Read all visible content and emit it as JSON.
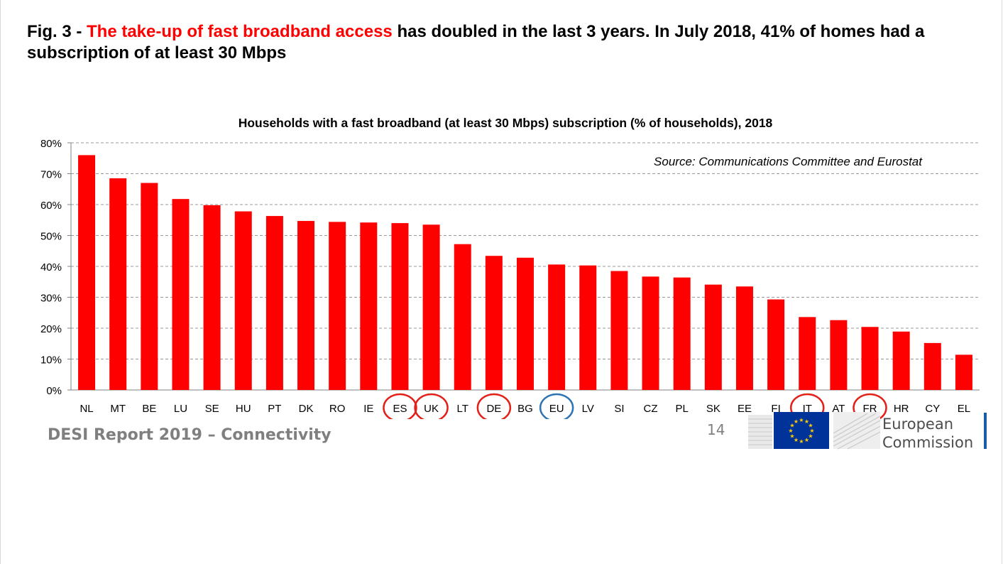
{
  "headline": {
    "prefix": "Fig. 3 - ",
    "highlight": "The take-up of fast broadband access",
    "rest": " has doubled in the last 3 years. In July 2018, 41% of homes had a subscription of at least 30 Mbps"
  },
  "footer": {
    "report": "DESI Report 2019 – Connectivity",
    "page_number": "14",
    "org_line1": "European",
    "org_line2": "Commission"
  },
  "colors": {
    "bar": "#ff0000",
    "highlight_text": "#ff0000",
    "circle_highlight": "#e32119",
    "circle_eu": "#2e74b5"
  },
  "chart_data": {
    "type": "bar",
    "title": "Households with a fast broadband (at least 30 Mbps) subscription (% of households), 2018",
    "annotation": "Source: Communications Committee and Eurostat",
    "xlabel": "",
    "ylabel": "",
    "ylim": [
      0,
      80
    ],
    "yticks": [
      "0%",
      "10%",
      "20%",
      "30%",
      "40%",
      "50%",
      "60%",
      "70%",
      "80%"
    ],
    "grid": true,
    "categories": [
      "NL",
      "MT",
      "BE",
      "LU",
      "SE",
      "HU",
      "PT",
      "DK",
      "RO",
      "IE",
      "ES",
      "UK",
      "LT",
      "DE",
      "BG",
      "EU",
      "LV",
      "SI",
      "CZ",
      "PL",
      "SK",
      "EE",
      "FI",
      "IT",
      "AT",
      "FR",
      "HR",
      "CY",
      "EL"
    ],
    "values": [
      76,
      68.5,
      67,
      61.8,
      59.8,
      57.8,
      56.3,
      54.7,
      54.4,
      54.2,
      54,
      53.5,
      47.2,
      43.4,
      42.8,
      40.6,
      40.3,
      38.5,
      36.7,
      36.4,
      34.1,
      33.5,
      29.3,
      23.6,
      22.6,
      20.4,
      18.9,
      15.2,
      11.4
    ],
    "circled_red": [
      "ES",
      "UK",
      "DE",
      "IT",
      "FR"
    ],
    "circled_blue": [
      "EU"
    ]
  }
}
